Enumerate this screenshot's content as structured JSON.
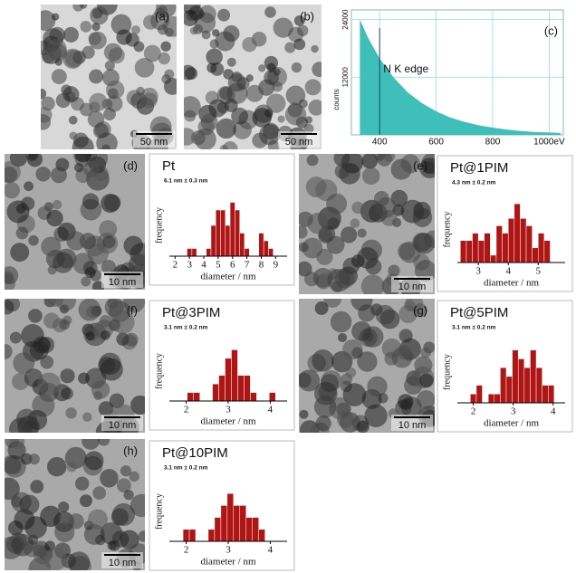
{
  "panels": [
    {
      "label": "(a)",
      "scale_bar": "50 nm"
    },
    {
      "label": "(b)",
      "scale_bar": "50 nm"
    },
    {
      "label": "(d)",
      "scale_bar": "10 nm"
    },
    {
      "label": "(e)",
      "scale_bar": "10 nm"
    },
    {
      "label": "(f)",
      "scale_bar": "10 nm"
    },
    {
      "label": "(g)",
      "scale_bar": "10 nm"
    },
    {
      "label": "(h)",
      "scale_bar": "10 nm"
    }
  ],
  "chart_data": [
    {
      "type": "area",
      "label": "(c)",
      "y_label": "counts",
      "x": [
        330,
        360,
        400,
        450,
        500,
        550,
        600,
        650,
        700,
        750,
        800,
        850,
        900,
        950,
        1000,
        1040
      ],
      "series": [
        {
          "color": "#3fbfb9",
          "values": [
            24000,
            20100,
            15900,
            11900,
            8800,
            6600,
            4900,
            3600,
            2700,
            2000,
            1500,
            1100,
            800,
            600,
            500,
            400
          ]
        }
      ],
      "xlim": [
        300,
        1050
      ],
      "ylim": [
        0,
        26000
      ],
      "xticks": [
        400,
        600,
        800,
        {
          "value": 1000,
          "label": "1000eV"
        }
      ],
      "yticks": [
        12000,
        24000
      ],
      "annotations": [
        {
          "text": "N K edge",
          "x": 400
        }
      ],
      "grid": true
    },
    {
      "type": "histogram",
      "title": "Pt",
      "subtitle": "6.1 nm ± 0.3 nm",
      "x_label": "diameter / nm",
      "y_label": "frequency",
      "color": "#b01515",
      "bins": [
        2.83,
        3.17,
        3.5,
        3.83,
        4.17,
        4.5,
        4.83,
        5.17,
        5.5,
        5.83,
        6.17,
        6.5,
        6.83,
        7.17,
        7.5,
        7.83,
        8.17,
        8.5,
        8.83
      ],
      "values": [
        1,
        1,
        0,
        0,
        1,
        4,
        6,
        6,
        4,
        7,
        6,
        3,
        1,
        0,
        0,
        3,
        2,
        1
      ],
      "xlim": [
        1.6,
        9.8
      ],
      "ylim": [
        0,
        8
      ],
      "xticks": [
        2,
        3,
        4,
        5,
        6,
        7,
        8,
        9
      ]
    },
    {
      "type": "histogram",
      "title": "Pt@1PIM",
      "subtitle": "4.3 nm ± 0.2 nm",
      "x_label": "diameter / nm",
      "y_label": "frequency",
      "color": "#b01515",
      "bins": [
        2.4,
        2.6,
        2.8,
        3.0,
        3.2,
        3.4,
        3.6,
        3.8,
        4.0,
        4.2,
        4.4,
        4.6,
        4.8,
        5.0,
        5.2,
        5.4
      ],
      "values": [
        3,
        3,
        4,
        3,
        4,
        1,
        5,
        4,
        6,
        8,
        6,
        5,
        2,
        4,
        3
      ],
      "xlim": [
        2.3,
        5.9
      ],
      "ylim": [
        0,
        9
      ],
      "xticks": [
        3,
        4,
        5
      ]
    },
    {
      "type": "histogram",
      "title": "Pt@3PIM",
      "subtitle": "3.1 nm ± 0.2 nm",
      "x_label": "diameter / nm",
      "y_label": "frequency",
      "color": "#b01515",
      "bins": [
        2.025,
        2.175,
        2.325,
        2.475,
        2.625,
        2.775,
        2.925,
        3.075,
        3.225,
        3.375,
        3.525,
        3.675,
        3.825,
        3.975,
        4.125
      ],
      "values": [
        1,
        1,
        0,
        0,
        2,
        3,
        5,
        6,
        3,
        3,
        1,
        0,
        0,
        1
      ],
      "xlim": [
        1.6,
        4.4
      ],
      "ylim": [
        0,
        7
      ],
      "xticks": [
        2,
        3,
        4
      ]
    },
    {
      "type": "histogram",
      "title": "Pt@5PIM",
      "subtitle": "3.1 nm ± 0.2 nm",
      "x_label": "diameter / nm",
      "y_label": "frequency",
      "color": "#b01515",
      "bins": [
        1.925,
        2.075,
        2.225,
        2.375,
        2.525,
        2.675,
        2.825,
        2.975,
        3.125,
        3.275,
        3.425,
        3.575,
        3.725,
        3.875,
        4.025
      ],
      "values": [
        1,
        2,
        0,
        1,
        1,
        4,
        3,
        6,
        5,
        4,
        6,
        4,
        2,
        2
      ],
      "xlim": [
        1.6,
        4.3
      ],
      "ylim": [
        0,
        7
      ],
      "xticks": [
        2,
        3,
        4
      ]
    },
    {
      "type": "histogram",
      "title": "Pt@10PIM",
      "subtitle": "3.1 nm ± 0.2 nm",
      "x_label": "diameter / nm",
      "y_label": "frequency",
      "color": "#b01515",
      "bins": [
        1.925,
        2.075,
        2.225,
        2.375,
        2.525,
        2.675,
        2.825,
        2.975,
        3.125,
        3.275,
        3.425,
        3.575,
        3.725,
        3.875
      ],
      "values": [
        1,
        1,
        0,
        0,
        1,
        2,
        3,
        4,
        3,
        3,
        2,
        2,
        1
      ],
      "xlim": [
        1.6,
        4.4
      ],
      "ylim": [
        0,
        5
      ],
      "xticks": [
        2,
        3,
        4
      ]
    }
  ]
}
